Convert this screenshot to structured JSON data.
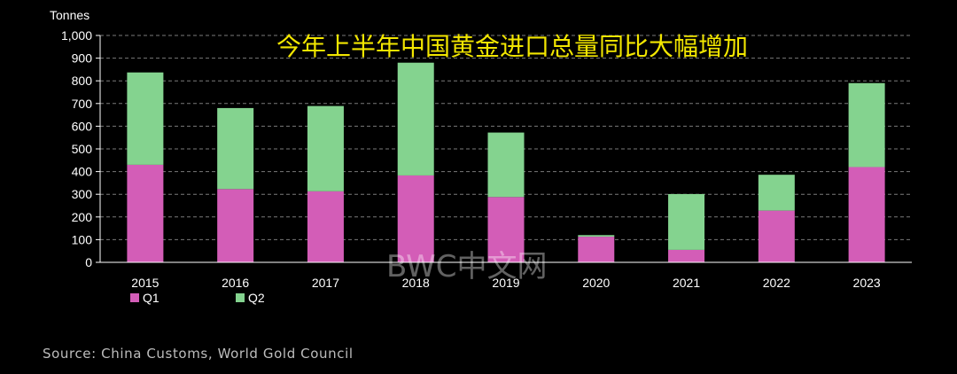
{
  "headline": "今年上半年中国黄金进口总量同比大幅增加",
  "watermark": "BWC中文网",
  "source": "Source: China Customs, World Gold Council",
  "colors": {
    "q1": "#d35db7",
    "q2": "#84d38f",
    "grid": "#7a7a7a",
    "headline": "#f2e600"
  },
  "chart_data": {
    "type": "bar",
    "stacked": true,
    "unit_label": "Tonnes",
    "categories": [
      "2015",
      "2016",
      "2017",
      "2018",
      "2019",
      "2020",
      "2021",
      "2022",
      "2023"
    ],
    "series": [
      {
        "name": "Q1",
        "values": [
          430,
          323,
          313,
          383,
          288,
          113,
          55,
          228,
          420
        ]
      },
      {
        "name": "Q2",
        "values": [
          407,
          357,
          376,
          497,
          284,
          7,
          246,
          158,
          370
        ]
      }
    ],
    "ylim": [
      0,
      1000
    ],
    "yticks": [
      "0",
      "100",
      "200",
      "300",
      "400",
      "500",
      "600",
      "700",
      "800",
      "900",
      "1,000"
    ],
    "grid": true,
    "legend": "bottom-left"
  }
}
